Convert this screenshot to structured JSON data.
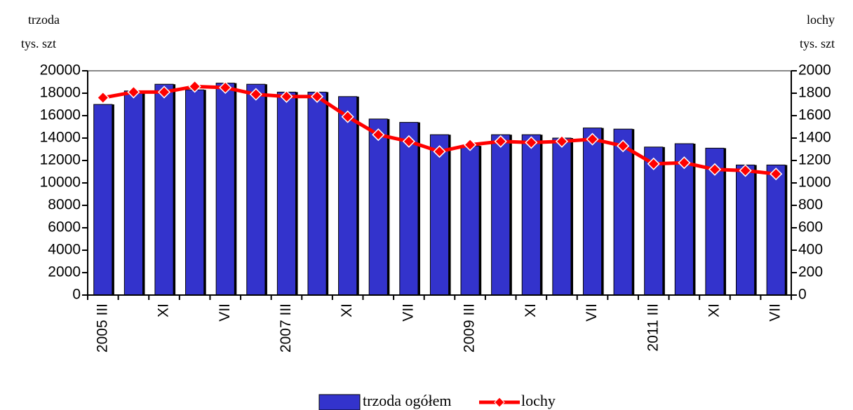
{
  "chart_data": {
    "type": "bar_line",
    "y_axis_label": [
      "trzoda",
      "tys. szt"
    ],
    "y2_axis_label": [
      "lochy",
      "tys. szt"
    ],
    "categories": [
      "2005 III",
      null,
      "XI",
      null,
      "VII",
      null,
      "2007 III",
      null,
      "XI",
      null,
      "VII",
      null,
      "2009 III",
      null,
      "XI",
      null,
      "VII",
      null,
      "2011 III",
      null,
      "XI",
      null,
      "VII"
    ],
    "series": [
      {
        "name": "trzoda ogółem",
        "type": "bar",
        "color": "#3333cc",
        "values": [
          17000,
          18200,
          18800,
          18300,
          18900,
          18800,
          18100,
          18100,
          17700,
          15700,
          15400,
          14300,
          13300,
          14300,
          14300,
          14000,
          14900,
          14800,
          13200,
          13500,
          13100,
          11600,
          11600
        ]
      },
      {
        "name": "lochy",
        "type": "line",
        "axis": "y2",
        "color": "#ff0000",
        "values": [
          1760,
          1810,
          1810,
          1860,
          1850,
          1790,
          1770,
          1770,
          1590,
          1430,
          1370,
          1280,
          1340,
          1370,
          1360,
          1370,
          1390,
          1330,
          1170,
          1180,
          1120,
          1110,
          1080
        ]
      }
    ],
    "ylim": [
      0,
      20000
    ],
    "yticks": [
      0,
      2000,
      4000,
      6000,
      8000,
      10000,
      12000,
      14000,
      16000,
      18000,
      20000
    ],
    "y2lim": [
      0,
      2000
    ],
    "y2ticks": [
      0,
      200,
      400,
      600,
      800,
      1000,
      1200,
      1400,
      1600,
      1800,
      2000
    ],
    "legend": "bottom"
  }
}
